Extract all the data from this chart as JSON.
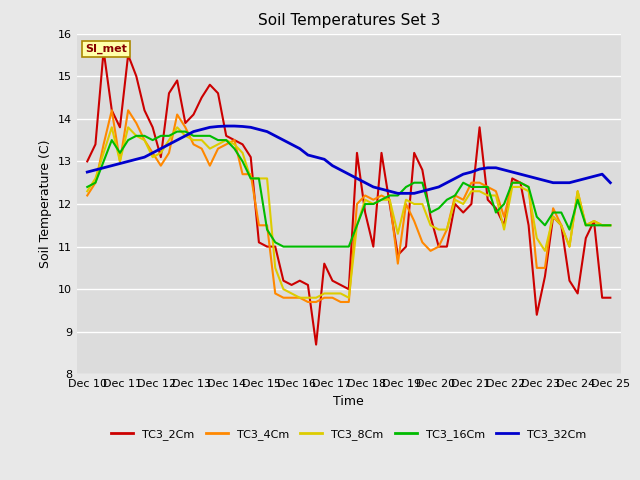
{
  "title": "Soil Temperatures Set 3",
  "xlabel": "Time",
  "ylabel": "Soil Temperature (C)",
  "ylim": [
    8.0,
    16.0
  ],
  "yticks": [
    8.0,
    9.0,
    10.0,
    11.0,
    12.0,
    13.0,
    14.0,
    15.0,
    16.0
  ],
  "xtick_labels": [
    "Dec 10",
    "Dec 11",
    "Dec 12",
    "Dec 13",
    "Dec 14",
    "Dec 15",
    "Dec 16",
    "Dec 17",
    "Dec 18",
    "Dec 19",
    "Dec 20",
    "Dec 21",
    "Dec 22",
    "Dec 23",
    "Dec 24",
    "Dec 25"
  ],
  "watermark": "SI_met",
  "background_color": "#e8e8e8",
  "plot_bg_color": "#dcdcdc",
  "series": {
    "TC3_2Cm": {
      "color": "#cc0000",
      "lw": 1.5
    },
    "TC3_4Cm": {
      "color": "#ff8800",
      "lw": 1.5
    },
    "TC3_8Cm": {
      "color": "#ddcc00",
      "lw": 1.5
    },
    "TC3_16Cm": {
      "color": "#00bb00",
      "lw": 1.5
    },
    "TC3_32Cm": {
      "color": "#0000cc",
      "lw": 2.0
    }
  },
  "TC3_2Cm": [
    13.0,
    13.4,
    15.6,
    14.2,
    13.8,
    15.5,
    15.0,
    14.2,
    13.8,
    13.1,
    14.6,
    14.9,
    13.9,
    14.1,
    14.5,
    14.8,
    14.6,
    13.6,
    13.5,
    13.4,
    13.1,
    11.1,
    11.0,
    11.0,
    10.2,
    10.1,
    10.2,
    10.1,
    8.7,
    10.6,
    10.2,
    10.1,
    10.0,
    13.2,
    11.8,
    11.0,
    13.2,
    12.0,
    10.8,
    11.0,
    13.2,
    12.8,
    11.7,
    11.0,
    11.0,
    12.0,
    11.8,
    12.0,
    13.8,
    12.1,
    11.9,
    11.5,
    12.6,
    12.5,
    11.5,
    9.4,
    10.3,
    11.7,
    11.5,
    10.2,
    9.9,
    11.2,
    11.6,
    9.8,
    9.8
  ],
  "TC3_4Cm": [
    12.2,
    12.5,
    13.4,
    14.2,
    13.0,
    14.2,
    13.9,
    13.5,
    13.2,
    12.9,
    13.2,
    14.1,
    13.8,
    13.4,
    13.3,
    12.9,
    13.3,
    13.4,
    13.5,
    12.7,
    12.7,
    11.5,
    11.5,
    9.9,
    9.8,
    9.8,
    9.8,
    9.7,
    9.7,
    9.8,
    9.8,
    9.7,
    9.7,
    12.0,
    12.2,
    12.1,
    12.2,
    12.1,
    10.6,
    12.0,
    11.6,
    11.1,
    10.9,
    11.0,
    11.4,
    12.2,
    12.1,
    12.5,
    12.5,
    12.4,
    12.3,
    11.7,
    12.5,
    12.5,
    12.4,
    10.5,
    10.5,
    11.9,
    11.5,
    11.0,
    12.3,
    11.5,
    11.6,
    11.5,
    11.5
  ],
  "TC3_8Cm": [
    12.3,
    12.6,
    13.2,
    13.8,
    13.0,
    13.8,
    13.6,
    13.5,
    13.1,
    13.2,
    13.5,
    13.8,
    13.6,
    13.5,
    13.5,
    13.3,
    13.4,
    13.5,
    13.4,
    13.2,
    12.6,
    12.6,
    12.6,
    10.5,
    10.0,
    9.9,
    9.8,
    9.8,
    9.8,
    9.9,
    9.9,
    9.9,
    9.8,
    11.5,
    12.1,
    12.0,
    12.1,
    12.1,
    11.3,
    12.1,
    12.0,
    12.0,
    11.5,
    11.4,
    11.4,
    12.1,
    12.0,
    12.3,
    12.3,
    12.2,
    12.2,
    11.4,
    12.4,
    12.4,
    12.3,
    11.2,
    10.9,
    11.7,
    11.5,
    11.0,
    12.3,
    11.5,
    11.6,
    11.5,
    11.5
  ],
  "TC3_16Cm": [
    12.4,
    12.5,
    13.0,
    13.5,
    13.2,
    13.5,
    13.6,
    13.6,
    13.5,
    13.6,
    13.6,
    13.7,
    13.7,
    13.6,
    13.6,
    13.6,
    13.5,
    13.5,
    13.3,
    13.0,
    12.6,
    12.6,
    11.4,
    11.1,
    11.0,
    11.0,
    11.0,
    11.0,
    11.0,
    11.0,
    11.0,
    11.0,
    11.0,
    11.5,
    12.0,
    12.0,
    12.1,
    12.2,
    12.2,
    12.4,
    12.5,
    12.5,
    11.8,
    11.9,
    12.1,
    12.2,
    12.5,
    12.4,
    12.4,
    12.4,
    11.8,
    12.0,
    12.5,
    12.5,
    12.4,
    11.7,
    11.5,
    11.8,
    11.8,
    11.4,
    12.1,
    11.5,
    11.5,
    11.5,
    11.5
  ],
  "TC3_32Cm": [
    12.75,
    12.8,
    12.85,
    12.9,
    12.95,
    13.0,
    13.05,
    13.1,
    13.2,
    13.3,
    13.4,
    13.5,
    13.6,
    13.7,
    13.75,
    13.8,
    13.82,
    13.83,
    13.83,
    13.82,
    13.8,
    13.75,
    13.7,
    13.6,
    13.5,
    13.4,
    13.3,
    13.15,
    13.1,
    13.05,
    12.9,
    12.8,
    12.7,
    12.6,
    12.5,
    12.4,
    12.35,
    12.3,
    12.25,
    12.25,
    12.25,
    12.3,
    12.35,
    12.4,
    12.5,
    12.6,
    12.7,
    12.75,
    12.82,
    12.85,
    12.85,
    12.8,
    12.75,
    12.7,
    12.65,
    12.6,
    12.55,
    12.5,
    12.5,
    12.5,
    12.55,
    12.6,
    12.65,
    12.7,
    12.5
  ]
}
